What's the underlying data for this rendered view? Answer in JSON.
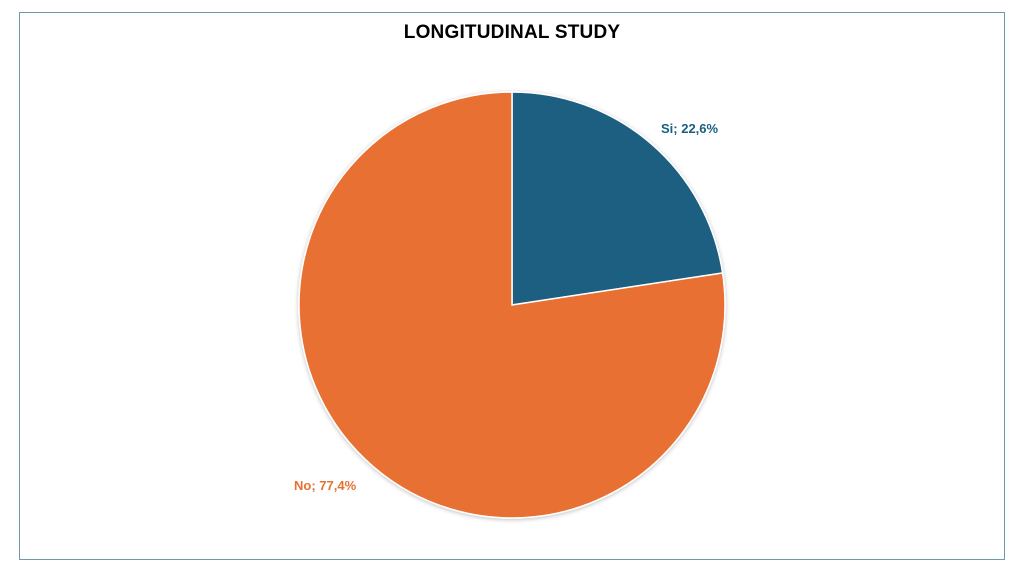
{
  "chart_data": {
    "type": "pie",
    "title": "LONGITUDINAL STUDY",
    "slices": [
      {
        "label": "Si",
        "value": 22.6,
        "display": "Si; 22,6%",
        "color": "#1a5e81"
      },
      {
        "label": "No",
        "value": 77.4,
        "display": "No; 77,4%",
        "color": "#e87032"
      }
    ],
    "start_angle_deg": 0,
    "direction": "clockwise",
    "legend": "none"
  }
}
